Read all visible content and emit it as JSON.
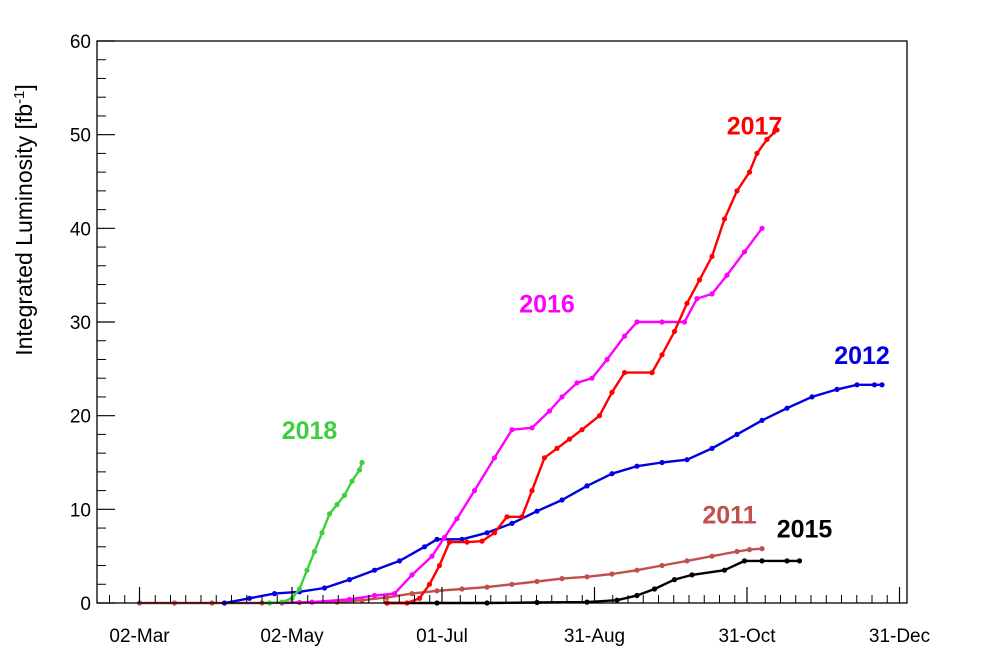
{
  "chart_data": {
    "type": "line",
    "title": "",
    "xlabel": "",
    "ylabel": "Integrated Luminosity [fb",
    "ylabel_superscript": "-1",
    "ylabel_suffix": "]",
    "x_unit": "day of year",
    "xlim": [
      44,
      368
    ],
    "ylim": [
      0,
      60
    ],
    "x_ticks": [
      {
        "day": 61,
        "label": "02-Mar"
      },
      {
        "day": 122,
        "label": "02-May"
      },
      {
        "day": 182,
        "label": "01-Jul"
      },
      {
        "day": 243,
        "label": "31-Aug"
      },
      {
        "day": 304,
        "label": "31-Oct"
      },
      {
        "day": 365,
        "label": "31-Dec"
      }
    ],
    "y_ticks": [
      0,
      10,
      20,
      30,
      40,
      50,
      60
    ],
    "grid": false,
    "series": [
      {
        "name": "2011",
        "color": "#c0504d",
        "label_at": [
          297,
          8.5
        ],
        "points": [
          [
            61,
            0
          ],
          [
            75,
            0
          ],
          [
            90,
            0
          ],
          [
            110,
            0
          ],
          [
            125,
            0.05
          ],
          [
            140,
            0.1
          ],
          [
            150,
            0.3
          ],
          [
            160,
            0.6
          ],
          [
            170,
            1.0
          ],
          [
            180,
            1.3
          ],
          [
            190,
            1.5
          ],
          [
            200,
            1.7
          ],
          [
            210,
            2.0
          ],
          [
            220,
            2.3
          ],
          [
            230,
            2.6
          ],
          [
            240,
            2.8
          ],
          [
            250,
            3.1
          ],
          [
            260,
            3.5
          ],
          [
            270,
            4.0
          ],
          [
            280,
            4.5
          ],
          [
            290,
            5.0
          ],
          [
            300,
            5.5
          ],
          [
            305,
            5.7
          ],
          [
            310,
            5.8
          ]
        ]
      },
      {
        "name": "2012",
        "color": "#0000e0",
        "label_at": [
          350,
          25.5
        ],
        "points": [
          [
            95,
            0
          ],
          [
            105,
            0.5
          ],
          [
            115,
            1.0
          ],
          [
            125,
            1.2
          ],
          [
            135,
            1.6
          ],
          [
            145,
            2.5
          ],
          [
            155,
            3.5
          ],
          [
            165,
            4.5
          ],
          [
            175,
            6.0
          ],
          [
            180,
            6.8
          ],
          [
            190,
            6.8
          ],
          [
            200,
            7.5
          ],
          [
            210,
            8.5
          ],
          [
            220,
            9.8
          ],
          [
            230,
            11.0
          ],
          [
            240,
            12.5
          ],
          [
            250,
            13.8
          ],
          [
            260,
            14.6
          ],
          [
            270,
            15.0
          ],
          [
            280,
            15.3
          ],
          [
            290,
            16.5
          ],
          [
            300,
            18.0
          ],
          [
            310,
            19.5
          ],
          [
            320,
            20.8
          ],
          [
            330,
            22.0
          ],
          [
            340,
            22.8
          ],
          [
            348,
            23.3
          ],
          [
            355,
            23.3
          ],
          [
            358,
            23.3
          ]
        ]
      },
      {
        "name": "2015",
        "color": "#000000",
        "label_at": [
          327,
          7.0
        ],
        "points": [
          [
            160,
            0
          ],
          [
            180,
            0
          ],
          [
            200,
            0
          ],
          [
            220,
            0.05
          ],
          [
            240,
            0.1
          ],
          [
            252,
            0.3
          ],
          [
            260,
            0.8
          ],
          [
            267,
            1.5
          ],
          [
            275,
            2.5
          ],
          [
            282,
            3.0
          ],
          [
            295,
            3.5
          ],
          [
            303,
            4.5
          ],
          [
            310,
            4.5
          ],
          [
            320,
            4.5
          ],
          [
            325,
            4.5
          ]
        ]
      },
      {
        "name": "2016",
        "color": "#ff00ff",
        "label_at": [
          224,
          31.0
        ],
        "points": [
          [
            118,
            0
          ],
          [
            130,
            0.1
          ],
          [
            145,
            0.4
          ],
          [
            155,
            0.8
          ],
          [
            163,
            1.0
          ],
          [
            170,
            3.0
          ],
          [
            178,
            5.0
          ],
          [
            183,
            7.0
          ],
          [
            188,
            9.0
          ],
          [
            195,
            12.0
          ],
          [
            203,
            15.5
          ],
          [
            210,
            18.5
          ],
          [
            218,
            18.7
          ],
          [
            225,
            20.5
          ],
          [
            230,
            22.0
          ],
          [
            236,
            23.5
          ],
          [
            242,
            24.0
          ],
          [
            248,
            26.0
          ],
          [
            255,
            28.5
          ],
          [
            260,
            30.0
          ],
          [
            270,
            30.0
          ],
          [
            279,
            30.0
          ],
          [
            284,
            32.5
          ],
          [
            290,
            33.0
          ],
          [
            296,
            35.0
          ],
          [
            303,
            37.5
          ],
          [
            310,
            40.0
          ]
        ]
      },
      {
        "name": "2017",
        "color": "#ff0000",
        "label_at": [
          307,
          50.0
        ],
        "points": [
          [
            160,
            0
          ],
          [
            168,
            0
          ],
          [
            173,
            0.5
          ],
          [
            177,
            2.0
          ],
          [
            181,
            4.0
          ],
          [
            185,
            6.5
          ],
          [
            192,
            6.5
          ],
          [
            198,
            6.6
          ],
          [
            203,
            7.5
          ],
          [
            208,
            9.2
          ],
          [
            214,
            9.2
          ],
          [
            218,
            12.0
          ],
          [
            223,
            15.5
          ],
          [
            228,
            16.5
          ],
          [
            233,
            17.5
          ],
          [
            238,
            18.5
          ],
          [
            245,
            20.0
          ],
          [
            250,
            22.5
          ],
          [
            255,
            24.6
          ],
          [
            266,
            24.6
          ],
          [
            270,
            26.5
          ],
          [
            275,
            29.0
          ],
          [
            280,
            32.0
          ],
          [
            285,
            34.5
          ],
          [
            290,
            37.0
          ],
          [
            295,
            41.0
          ],
          [
            300,
            44.0
          ],
          [
            305,
            46.0
          ],
          [
            308,
            48.0
          ],
          [
            312,
            49.5
          ],
          [
            316,
            50.5
          ]
        ]
      },
      {
        "name": "2018",
        "color": "#3ecf3e",
        "label_at": [
          129,
          17.5
        ],
        "points": [
          [
            113,
            0
          ],
          [
            118,
            0.1
          ],
          [
            122,
            0.5
          ],
          [
            125,
            1.5
          ],
          [
            128,
            3.5
          ],
          [
            131,
            5.5
          ],
          [
            134,
            7.5
          ],
          [
            137,
            9.5
          ],
          [
            140,
            10.5
          ],
          [
            143,
            11.5
          ],
          [
            146,
            13.0
          ],
          [
            149,
            14.2
          ],
          [
            150,
            15.0
          ]
        ]
      }
    ]
  }
}
